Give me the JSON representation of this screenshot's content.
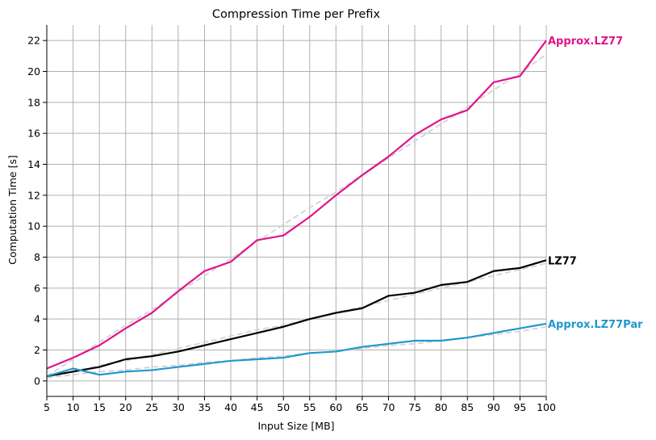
{
  "chart_data": {
    "type": "line",
    "title": "Compression Time per Prefix",
    "xlabel": "Input Size [MB]",
    "ylabel": "Computation Time [s]",
    "xlim": [
      5,
      100
    ],
    "ylim": [
      -1,
      23
    ],
    "grid": true,
    "x": [
      5,
      10,
      15,
      20,
      25,
      30,
      35,
      40,
      45,
      50,
      55,
      60,
      65,
      70,
      75,
      80,
      85,
      90,
      95,
      100
    ],
    "xticks": [
      "5",
      "10",
      "15",
      "20",
      "25",
      "30",
      "35",
      "40",
      "45",
      "50",
      "55",
      "60",
      "65",
      "70",
      "75",
      "80",
      "85",
      "90",
      "95",
      "100"
    ],
    "yticks": [
      "0",
      "2",
      "4",
      "6",
      "8",
      "10",
      "12",
      "14",
      "16",
      "18",
      "20",
      "22"
    ],
    "series": [
      {
        "name": "Approx.LZ77",
        "color": "#e0148c",
        "values": [
          0.8,
          1.5,
          2.3,
          3.4,
          4.4,
          5.8,
          7.1,
          7.7,
          9.1,
          9.4,
          10.6,
          12.0,
          13.3,
          14.5,
          15.9,
          16.9,
          17.5,
          19.3,
          19.7,
          22.0
        ],
        "trend": [
          0.3,
          1.4,
          2.5,
          3.6,
          4.6,
          5.7,
          6.8,
          7.9,
          9.0,
          10.1,
          11.2,
          12.2,
          13.3,
          14.4,
          15.5,
          16.6,
          17.7,
          18.8,
          19.9,
          21.1
        ]
      },
      {
        "name": "LZ77",
        "color": "#000000",
        "values": [
          0.3,
          0.6,
          0.9,
          1.4,
          1.6,
          1.9,
          2.3,
          2.7,
          3.1,
          3.5,
          4.0,
          4.4,
          4.7,
          5.5,
          5.7,
          6.2,
          6.4,
          7.1,
          7.3,
          7.8
        ],
        "trend": [
          0.2,
          0.6,
          1.0,
          1.3,
          1.7,
          2.1,
          2.5,
          2.9,
          3.3,
          3.6,
          4.0,
          4.4,
          4.8,
          5.2,
          5.6,
          6.0,
          6.4,
          6.8,
          7.2,
          7.6
        ]
      },
      {
        "name": "Approx.LZ77Par",
        "color": "#1f98cc",
        "values": [
          0.3,
          0.8,
          0.4,
          0.6,
          0.7,
          0.9,
          1.1,
          1.3,
          1.4,
          1.5,
          1.8,
          1.9,
          2.2,
          2.4,
          2.6,
          2.6,
          2.8,
          3.1,
          3.4,
          3.7
        ],
        "trend": [
          0.2,
          0.4,
          0.6,
          0.7,
          0.9,
          1.0,
          1.2,
          1.3,
          1.5,
          1.6,
          1.8,
          1.9,
          2.1,
          2.3,
          2.4,
          2.6,
          2.8,
          3.0,
          3.2,
          3.5
        ]
      }
    ],
    "trend_color": "#d3d3d3"
  }
}
